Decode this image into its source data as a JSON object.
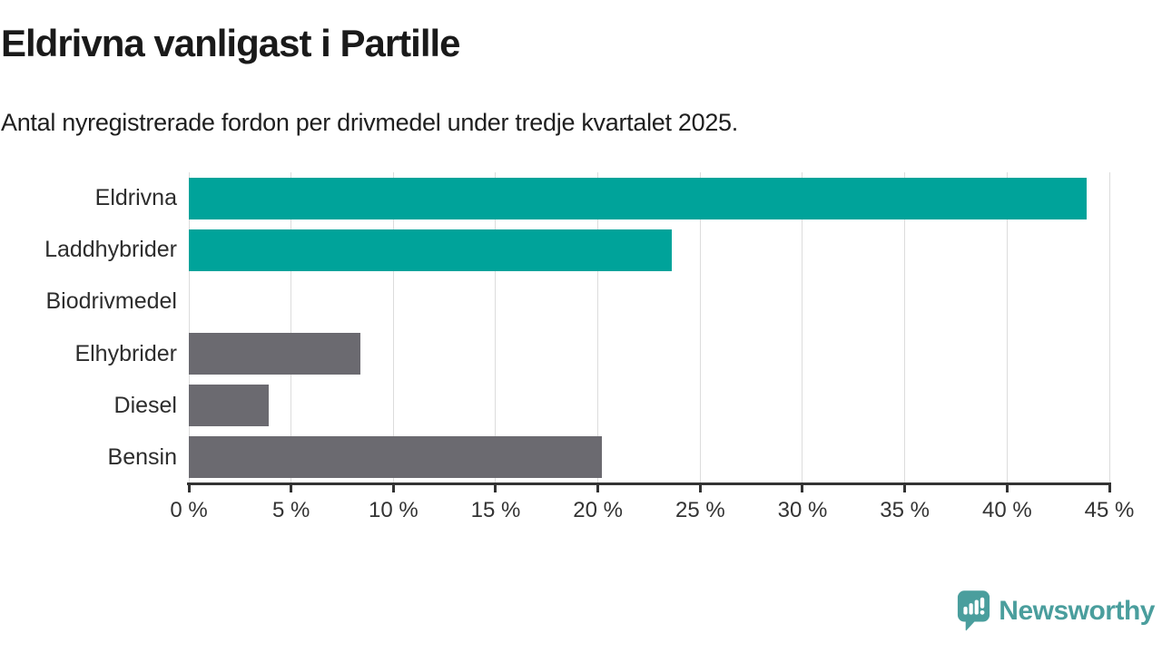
{
  "header": {
    "title": "Eldrivna vanligast i Partille",
    "subtitle": "Antal nyregistrerade fordon per drivmedel under tredje kvartalet 2025."
  },
  "chart_data": {
    "type": "bar",
    "orientation": "horizontal",
    "title": "Eldrivna vanligast i Partille",
    "subtitle": "Antal nyregistrerade fordon per drivmedel under tredje kvartalet 2025.",
    "categories": [
      "Eldrivna",
      "Laddhybrider",
      "Biodrivmedel",
      "Elhybrider",
      "Diesel",
      "Bensin"
    ],
    "values": [
      43.9,
      23.6,
      0,
      8.4,
      3.9,
      20.2
    ],
    "unit": "%",
    "bar_colors": [
      "#00a39a",
      "#00a39a",
      "#6b6a70",
      "#6b6a70",
      "#6b6a70",
      "#6b6a70"
    ],
    "highlight_color": "#00a39a",
    "default_color": "#6b6a70",
    "xlabel": "",
    "ylabel": "",
    "xlim": [
      0,
      45
    ],
    "x_ticks": [
      0,
      5,
      10,
      15,
      20,
      25,
      30,
      35,
      40,
      45
    ],
    "x_tick_suffix": " %",
    "grid": "vertical",
    "legend": "none"
  },
  "footer": {
    "brand": "Newsworthy"
  },
  "colors": {
    "gridline": "#dcdcdc",
    "axis": "#333333",
    "logo_teal": "#4a9e9d"
  }
}
